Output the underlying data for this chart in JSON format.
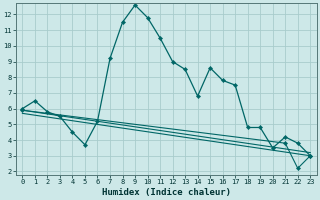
{
  "xlabel": "Humidex (Indice chaleur)",
  "bg_color": "#cde8e8",
  "grid_color": "#a8cccc",
  "line_color": "#006666",
  "xlim": [
    -0.5,
    23.5
  ],
  "ylim": [
    1.8,
    12.7
  ],
  "xtick_labels": [
    "0",
    "1",
    "2",
    "3",
    "4",
    "5",
    "6",
    "7",
    "8",
    "9",
    "10",
    "11",
    "12",
    "13",
    "14",
    "15",
    "16",
    "17",
    "18",
    "19",
    "20",
    "21",
    "22",
    "23"
  ],
  "ytick_values": [
    2,
    3,
    4,
    5,
    6,
    7,
    8,
    9,
    10,
    11,
    12
  ],
  "series1_x": [
    0,
    1,
    2,
    3,
    4,
    5,
    6,
    7,
    8,
    9,
    10,
    11,
    12,
    13,
    14,
    15,
    16,
    17,
    18,
    19,
    20,
    21,
    22,
    23
  ],
  "series1_y": [
    6.0,
    6.5,
    5.8,
    5.5,
    4.5,
    3.7,
    5.2,
    9.2,
    11.5,
    12.6,
    11.8,
    10.5,
    9.0,
    8.5,
    6.8,
    8.6,
    7.8,
    7.5,
    4.8,
    4.8,
    3.5,
    4.2,
    3.8,
    3.0
  ],
  "series2_x": [
    0,
    23
  ],
  "series2_y": [
    5.9,
    3.2
  ],
  "series3_x": [
    0,
    23
  ],
  "series3_y": [
    5.7,
    3.0
  ],
  "series4_x": [
    0,
    21,
    22,
    23
  ],
  "series4_y": [
    5.9,
    3.8,
    2.2,
    3.0
  ]
}
